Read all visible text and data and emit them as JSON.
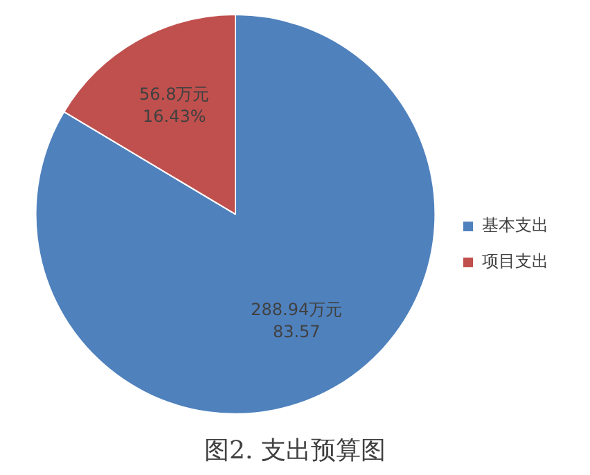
{
  "chart_data": {
    "type": "pie",
    "title": "图2. 支出预算图",
    "categories": [
      "基本支出",
      "项目支出"
    ],
    "values": [
      288.94,
      56.8
    ],
    "colors": [
      "#4f81bd",
      "#c0504d"
    ],
    "value_labels": [
      "288.94万元\n83.57",
      "56.8万元\n16.43%"
    ],
    "legend": "right"
  }
}
